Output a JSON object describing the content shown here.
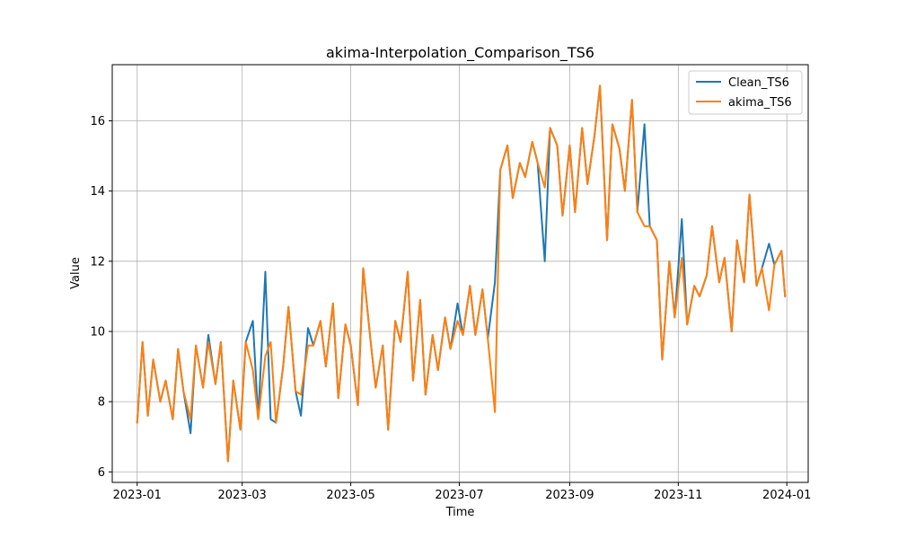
{
  "chart_data": {
    "type": "line",
    "title": "akima-Interpolation_Comparison_TS6",
    "xlabel": "Time",
    "ylabel": "Value",
    "x_start": "2023-01-01",
    "x_end": "2023-12-31",
    "xlim": [
      "2022-12-18",
      "2024-01-13"
    ],
    "ylim": [
      5.7,
      17.6
    ],
    "x_ticks": [
      "2023-01-01",
      "2023-03-01",
      "2023-05-01",
      "2023-07-01",
      "2023-09-01",
      "2023-11-01",
      "2024-01-01"
    ],
    "y_ticks": [
      6,
      8,
      10,
      12,
      14,
      16
    ],
    "grid": true,
    "legend": "top-right",
    "colors": {
      "clean": "#1f77b4",
      "akima": "#ff7f0e"
    },
    "series": [
      {
        "name": "Clean_TS6",
        "dates": [
          "2023-01-01",
          "2023-01-04",
          "2023-01-07",
          "2023-01-10",
          "2023-01-14",
          "2023-01-17",
          "2023-01-21",
          "2023-01-24",
          "2023-01-27",
          "2023-01-31",
          "2023-02-03",
          "2023-02-07",
          "2023-02-10",
          "2023-02-14",
          "2023-02-17",
          "2023-02-21",
          "2023-02-24",
          "2023-02-28",
          "2023-03-03",
          "2023-03-07",
          "2023-03-10",
          "2023-03-14",
          "2023-03-17",
          "2023-03-20",
          "2023-03-24",
          "2023-03-27",
          "2023-03-31",
          "2023-04-03",
          "2023-04-07",
          "2023-04-10",
          "2023-04-14",
          "2023-04-17",
          "2023-04-21",
          "2023-04-24",
          "2023-04-28",
          "2023-05-01",
          "2023-05-05",
          "2023-05-08",
          "2023-05-12",
          "2023-05-15",
          "2023-05-19",
          "2023-05-22",
          "2023-05-26",
          "2023-05-29",
          "2023-06-02",
          "2023-06-05",
          "2023-06-09",
          "2023-06-12",
          "2023-06-16",
          "2023-06-19",
          "2023-06-23",
          "2023-06-26",
          "2023-06-30",
          "2023-07-03",
          "2023-07-07",
          "2023-07-10",
          "2023-07-14",
          "2023-07-17",
          "2023-07-21",
          "2023-07-24",
          "2023-07-28",
          "2023-07-31",
          "2023-08-04",
          "2023-08-07",
          "2023-08-11",
          "2023-08-14",
          "2023-08-18",
          "2023-08-21",
          "2023-08-25",
          "2023-08-28",
          "2023-09-01",
          "2023-09-04",
          "2023-09-08",
          "2023-09-11",
          "2023-09-15",
          "2023-09-18",
          "2023-09-22",
          "2023-09-25",
          "2023-09-29",
          "2023-10-02",
          "2023-10-06",
          "2023-10-09",
          "2023-10-13",
          "2023-10-16",
          "2023-10-20",
          "2023-10-23",
          "2023-10-27",
          "2023-10-30",
          "2023-11-03",
          "2023-11-06",
          "2023-11-10",
          "2023-11-13",
          "2023-11-17",
          "2023-11-20",
          "2023-11-24",
          "2023-11-27",
          "2023-12-01",
          "2023-12-04",
          "2023-12-08",
          "2023-12-11",
          "2023-12-15",
          "2023-12-18",
          "2023-12-22",
          "2023-12-25",
          "2023-12-29",
          "2023-12-31"
        ],
        "values": [
          7.4,
          9.7,
          7.6,
          9.2,
          8.0,
          8.6,
          7.5,
          9.5,
          8.3,
          7.1,
          9.6,
          8.4,
          9.9,
          8.5,
          9.7,
          6.3,
          8.6,
          7.2,
          9.7,
          10.3,
          7.5,
          11.7,
          7.5,
          7.4,
          9.0,
          10.7,
          8.3,
          7.6,
          10.1,
          9.6,
          10.3,
          9.0,
          10.8,
          8.1,
          10.2,
          9.6,
          7.9,
          11.8,
          9.8,
          8.4,
          9.6,
          7.2,
          10.3,
          9.7,
          11.7,
          8.6,
          10.9,
          8.2,
          9.9,
          8.9,
          10.4,
          9.5,
          10.8,
          9.9,
          11.3,
          9.9,
          11.2,
          9.8,
          11.4,
          14.6,
          15.3,
          13.8,
          14.8,
          14.4,
          15.4,
          14.8,
          12.0,
          15.8,
          15.3,
          13.3,
          15.3,
          13.4,
          15.8,
          14.2,
          15.6,
          17.0,
          12.6,
          15.9,
          15.2,
          14.0,
          16.6,
          13.4,
          15.9,
          13.0,
          12.6,
          9.2,
          12.0,
          10.4,
          13.2,
          10.2,
          11.3,
          11.0,
          11.6,
          13.0,
          11.4,
          12.1,
          10.0,
          12.6,
          11.4,
          13.9,
          11.3,
          11.8,
          12.5,
          11.9,
          12.3,
          11.0
        ]
      },
      {
        "name": "akima_TS6",
        "dates": [
          "2023-01-01",
          "2023-01-04",
          "2023-01-07",
          "2023-01-10",
          "2023-01-14",
          "2023-01-17",
          "2023-01-21",
          "2023-01-24",
          "2023-01-27",
          "2023-01-31",
          "2023-02-03",
          "2023-02-07",
          "2023-02-10",
          "2023-02-14",
          "2023-02-17",
          "2023-02-21",
          "2023-02-24",
          "2023-02-28",
          "2023-03-03",
          "2023-03-07",
          "2023-03-10",
          "2023-03-14",
          "2023-03-17",
          "2023-03-20",
          "2023-03-24",
          "2023-03-27",
          "2023-03-31",
          "2023-04-03",
          "2023-04-07",
          "2023-04-10",
          "2023-04-14",
          "2023-04-17",
          "2023-04-21",
          "2023-04-24",
          "2023-04-28",
          "2023-05-01",
          "2023-05-05",
          "2023-05-08",
          "2023-05-12",
          "2023-05-15",
          "2023-05-19",
          "2023-05-22",
          "2023-05-26",
          "2023-05-29",
          "2023-06-02",
          "2023-06-05",
          "2023-06-09",
          "2023-06-12",
          "2023-06-16",
          "2023-06-19",
          "2023-06-23",
          "2023-06-26",
          "2023-06-30",
          "2023-07-03",
          "2023-07-07",
          "2023-07-10",
          "2023-07-14",
          "2023-07-17",
          "2023-07-21",
          "2023-07-24",
          "2023-07-28",
          "2023-07-31",
          "2023-08-04",
          "2023-08-07",
          "2023-08-11",
          "2023-08-14",
          "2023-08-18",
          "2023-08-21",
          "2023-08-25",
          "2023-08-28",
          "2023-09-01",
          "2023-09-04",
          "2023-09-08",
          "2023-09-11",
          "2023-09-15",
          "2023-09-18",
          "2023-09-22",
          "2023-09-25",
          "2023-09-29",
          "2023-10-02",
          "2023-10-06",
          "2023-10-09",
          "2023-10-13",
          "2023-10-16",
          "2023-10-20",
          "2023-10-23",
          "2023-10-27",
          "2023-10-30",
          "2023-11-03",
          "2023-11-06",
          "2023-11-10",
          "2023-11-13",
          "2023-11-17",
          "2023-11-20",
          "2023-11-24",
          "2023-11-27",
          "2023-12-01",
          "2023-12-04",
          "2023-12-08",
          "2023-12-11",
          "2023-12-15",
          "2023-12-18",
          "2023-12-22",
          "2023-12-25",
          "2023-12-29",
          "2023-12-31"
        ],
        "values": [
          7.4,
          9.7,
          7.6,
          9.2,
          8.0,
          8.6,
          7.5,
          9.5,
          8.3,
          7.5,
          9.6,
          8.4,
          9.7,
          8.5,
          9.7,
          6.3,
          8.6,
          7.2,
          9.7,
          8.9,
          7.5,
          9.3,
          9.7,
          7.4,
          9.0,
          10.7,
          8.3,
          8.2,
          9.6,
          9.6,
          10.3,
          9.0,
          10.8,
          8.1,
          10.2,
          9.6,
          7.9,
          11.8,
          9.8,
          8.4,
          9.6,
          7.2,
          10.3,
          9.7,
          11.7,
          8.6,
          10.9,
          8.2,
          9.9,
          8.9,
          10.4,
          9.5,
          10.3,
          9.9,
          11.3,
          9.9,
          11.2,
          9.8,
          7.7,
          14.6,
          15.3,
          13.8,
          14.8,
          14.4,
          15.4,
          14.8,
          14.1,
          15.8,
          15.3,
          13.3,
          15.3,
          13.4,
          15.8,
          14.2,
          15.6,
          17.0,
          12.6,
          15.9,
          15.2,
          14.0,
          16.6,
          13.4,
          13.0,
          13.0,
          12.6,
          9.2,
          12.0,
          10.4,
          12.1,
          10.2,
          11.3,
          11.0,
          11.6,
          13.0,
          11.4,
          12.1,
          10.0,
          12.6,
          11.4,
          13.9,
          11.3,
          11.8,
          10.6,
          11.9,
          12.3,
          11.0
        ]
      }
    ]
  }
}
